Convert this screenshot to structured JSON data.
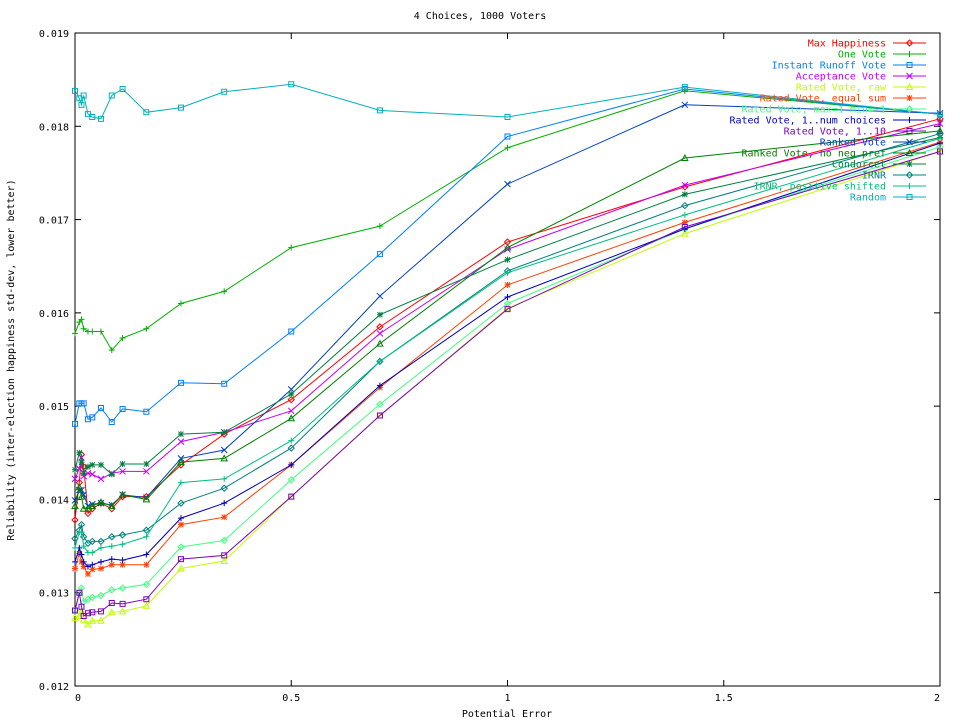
{
  "chart_data": {
    "type": "line",
    "title": "4 Choices, 1000 Voters",
    "xlabel": "Potential Error",
    "ylabel": "Reliability (inter-election happiness std-dev, lower better)",
    "xlim": [
      0,
      2
    ],
    "ylim": [
      0.012,
      0.019
    ],
    "xticks": [
      0,
      0.5,
      1,
      1.5,
      2
    ],
    "xtick_labels": [
      "0",
      "0.5",
      "1",
      "1.5",
      "2"
    ],
    "yticks": [
      0.012,
      0.013,
      0.014,
      0.015,
      0.016,
      0.017,
      0.018,
      0.019
    ],
    "ytick_labels": [
      "0.012",
      "0.013",
      "0.014",
      "0.015",
      "0.016",
      "0.017",
      "0.018",
      "0.019"
    ],
    "grid": false,
    "legend_position": "top-right",
    "x": [
      0,
      0.01,
      0.015,
      0.02,
      0.03,
      0.04,
      0.06,
      0.085,
      0.11,
      0.165,
      0.245,
      0.345,
      0.5,
      0.705,
      1.0,
      1.41,
      2.0
    ],
    "series": [
      {
        "name": "Max Happiness",
        "color": "#ff0000",
        "marker": "diamond",
        "values": [
          0.01378,
          0.01418,
          0.01448,
          0.01435,
          0.01385,
          0.0139,
          0.01396,
          0.0139,
          0.01403,
          0.01403,
          0.01437,
          0.0147,
          0.01507,
          0.01585,
          0.01676,
          0.01735,
          0.01808
        ]
      },
      {
        "name": "One Vote",
        "color": "#00b000",
        "marker": "plus",
        "values": [
          0.01578,
          0.0159,
          0.01593,
          0.01583,
          0.0158,
          0.0158,
          0.0158,
          0.0156,
          0.01573,
          0.01583,
          0.0161,
          0.01623,
          0.0167,
          0.01693,
          0.01777,
          0.01838,
          0.01813
        ]
      },
      {
        "name": "Instant Runoff Vote",
        "color": "#0080ff",
        "marker": "square",
        "values": [
          0.01481,
          0.01503,
          0.01503,
          0.01503,
          0.01486,
          0.01488,
          0.01498,
          0.01483,
          0.01497,
          0.01494,
          0.01525,
          0.01524,
          0.0158,
          0.01663,
          0.01789,
          0.0184,
          0.01813
        ]
      },
      {
        "name": "Acceptance Vote",
        "color": "#c000ff",
        "marker": "x",
        "values": [
          0.01422,
          0.01433,
          0.01445,
          0.01425,
          0.01428,
          0.01427,
          0.01422,
          0.01428,
          0.0143,
          0.0143,
          0.01462,
          0.01472,
          0.01495,
          0.01578,
          0.01668,
          0.01737,
          0.01803
        ]
      },
      {
        "name": "Rated Vote, raw",
        "color": "#c0ff00",
        "marker": "triangle",
        "values": [
          0.01273,
          0.01275,
          0.0128,
          0.01271,
          0.01266,
          0.0127,
          0.0127,
          0.01279,
          0.0128,
          0.01286,
          0.01326,
          0.01334,
          0.01403,
          0.0149,
          0.01605,
          0.01685,
          0.01773
        ]
      },
      {
        "name": "Rated Vote, equal sum",
        "color": "#ff4000",
        "marker": "star",
        "values": [
          0.01326,
          0.01342,
          0.01333,
          0.01328,
          0.0132,
          0.01325,
          0.01326,
          0.0133,
          0.0133,
          0.0133,
          0.01373,
          0.01381,
          0.01437,
          0.0152,
          0.0163,
          0.01697,
          0.01783
        ]
      },
      {
        "name": "Rated Vote, max=1 min=-1",
        "color": "#40ff80",
        "marker": "diamond",
        "values": [
          0.01281,
          0.013,
          0.01305,
          0.0129,
          0.01293,
          0.01295,
          0.01297,
          0.01303,
          0.01305,
          0.01309,
          0.01349,
          0.01356,
          0.01421,
          0.01502,
          0.0161,
          0.0169,
          0.01778
        ]
      },
      {
        "name": "Rated Vote, 1..num choices",
        "color": "#0000c0",
        "marker": "plus",
        "values": [
          0.01333,
          0.01348,
          0.01341,
          0.01333,
          0.01328,
          0.0133,
          0.01333,
          0.01336,
          0.01335,
          0.01341,
          0.0138,
          0.01396,
          0.01437,
          0.01522,
          0.01617,
          0.0169,
          0.01782
        ]
      },
      {
        "name": "Rated Vote, 1..10",
        "color": "#8000c0",
        "marker": "square",
        "values": [
          0.01281,
          0.013,
          0.01285,
          0.01275,
          0.01278,
          0.01279,
          0.0128,
          0.01289,
          0.01288,
          0.01293,
          0.01336,
          0.0134,
          0.01403,
          0.0149,
          0.01604,
          0.01692,
          0.01773
        ]
      },
      {
        "name": "Ranked Vote",
        "color": "#0040c0",
        "marker": "x",
        "values": [
          0.01399,
          0.0141,
          0.0141,
          0.01405,
          0.01393,
          0.01395,
          0.01396,
          0.01394,
          0.01405,
          0.01402,
          0.01444,
          0.01453,
          0.01518,
          0.01618,
          0.01738,
          0.01823,
          0.01814
        ]
      },
      {
        "name": "Ranked Vote, no neg pref",
        "color": "#008000",
        "marker": "triangle",
        "values": [
          0.01393,
          0.01413,
          0.01403,
          0.0139,
          0.0139,
          0.01393,
          0.01397,
          0.01393,
          0.01405,
          0.014,
          0.0144,
          0.01444,
          0.01487,
          0.01567,
          0.0167,
          0.01766,
          0.01795
        ]
      },
      {
        "name": "Condorcet",
        "color": "#008040",
        "marker": "star",
        "values": [
          0.01432,
          0.0145,
          0.0144,
          0.01428,
          0.01435,
          0.01437,
          0.01437,
          0.01427,
          0.01438,
          0.01438,
          0.0147,
          0.01472,
          0.01513,
          0.01598,
          0.01657,
          0.01727,
          0.01788
        ]
      },
      {
        "name": "IRNR",
        "color": "#008080",
        "marker": "diamond",
        "values": [
          0.01358,
          0.01367,
          0.01373,
          0.0136,
          0.01353,
          0.01355,
          0.01355,
          0.0136,
          0.01362,
          0.01367,
          0.01396,
          0.01412,
          0.01455,
          0.01548,
          0.01645,
          0.01715,
          0.01792
        ]
      },
      {
        "name": "IRNR, positive shifted",
        "color": "#00c080",
        "marker": "plus",
        "values": [
          0.01348,
          0.01365,
          0.01365,
          0.0135,
          0.01343,
          0.01343,
          0.01348,
          0.0135,
          0.01352,
          0.0136,
          0.01418,
          0.01422,
          0.01463,
          0.01548,
          0.01643,
          0.01705,
          0.01787
        ]
      },
      {
        "name": "Random",
        "color": "#00b0c0",
        "marker": "square",
        "values": [
          0.01838,
          0.0183,
          0.01823,
          0.01833,
          0.01813,
          0.0181,
          0.01808,
          0.01833,
          0.0184,
          0.01815,
          0.0182,
          0.01837,
          0.01845,
          0.01817,
          0.0181,
          0.01842,
          0.01813
        ]
      }
    ]
  }
}
